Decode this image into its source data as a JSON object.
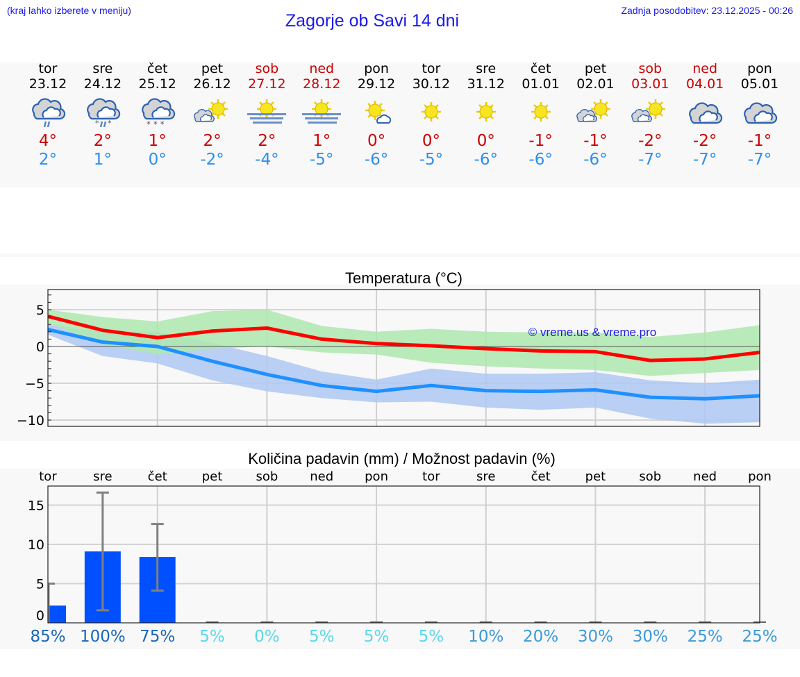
{
  "header": {
    "menu_hint": "(kraj lahko izberete v meniju)",
    "title": "Zagorje ob Savi 14 dni",
    "last_update": "Zadnja posodobitev: 23.12.2025 - 00:26"
  },
  "colors": {
    "title_blue": "#1a1ae6",
    "weekend_red": "#cc0000",
    "tmax_red": "#cc0000",
    "tmin_blue": "#2b8ef0",
    "line_max": "#ff0000",
    "line_min": "#1e90ff",
    "band_max": "#aee8ae",
    "band_min": "#aec8f2",
    "bar": "#0050ff",
    "errbar": "#808080"
  },
  "days": [
    {
      "name": "tor",
      "date": "23.12",
      "weekend": false,
      "icon": "cloud-rain-icon",
      "tmax": "4°",
      "tmin": "2°"
    },
    {
      "name": "sre",
      "date": "24.12",
      "weekend": false,
      "icon": "cloud-sleet-icon",
      "tmax": "2°",
      "tmin": "1°"
    },
    {
      "name": "čet",
      "date": "25.12",
      "weekend": false,
      "icon": "cloud-snow-icon",
      "tmax": "1°",
      "tmin": "0°"
    },
    {
      "name": "pet",
      "date": "26.12",
      "weekend": false,
      "icon": "sun-cloud-icon",
      "tmax": "2°",
      "tmin": "-2°"
    },
    {
      "name": "sob",
      "date": "27.12",
      "weekend": true,
      "icon": "sun-fog-icon",
      "tmax": "2°",
      "tmin": "-4°"
    },
    {
      "name": "ned",
      "date": "28.12",
      "weekend": true,
      "icon": "sun-fog-icon",
      "tmax": "1°",
      "tmin": "-5°"
    },
    {
      "name": "pon",
      "date": "29.12",
      "weekend": false,
      "icon": "sun-small-cloud-icon",
      "tmax": "0°",
      "tmin": "-6°"
    },
    {
      "name": "tor",
      "date": "30.12",
      "weekend": false,
      "icon": "sun-icon",
      "tmax": "0°",
      "tmin": "-5°"
    },
    {
      "name": "sre",
      "date": "31.12",
      "weekend": false,
      "icon": "sun-icon",
      "tmax": "0°",
      "tmin": "-6°"
    },
    {
      "name": "čet",
      "date": "01.01",
      "weekend": false,
      "icon": "sun-icon",
      "tmax": "-1°",
      "tmin": "-6°"
    },
    {
      "name": "pet",
      "date": "02.01",
      "weekend": false,
      "icon": "sun-cloud-icon",
      "tmax": "-1°",
      "tmin": "-6°"
    },
    {
      "name": "sob",
      "date": "03.01",
      "weekend": true,
      "icon": "sun-cloud-icon",
      "tmax": "-2°",
      "tmin": "-7°"
    },
    {
      "name": "ned",
      "date": "04.01",
      "weekend": true,
      "icon": "cloud-icon",
      "tmax": "-2°",
      "tmin": "-7°"
    },
    {
      "name": "pon",
      "date": "05.01",
      "weekend": false,
      "icon": "cloud-icon",
      "tmax": "-1°",
      "tmin": "-7°"
    }
  ],
  "chart_data": [
    {
      "type": "line",
      "title": "Temperatura (°C)",
      "xlabel": "",
      "ylabel": "",
      "ylim": [
        -11,
        7.7
      ],
      "yticks": [
        "5",
        "0",
        "−5",
        "−10"
      ],
      "grid": true,
      "annotation": "© vreme.us & vreme.pro",
      "x": [
        "23.12",
        "24.12",
        "25.12",
        "26.12",
        "27.12",
        "28.12",
        "29.12",
        "30.12",
        "31.12",
        "01.01",
        "02.01",
        "03.01",
        "04.01",
        "05.01"
      ],
      "series": [
        {
          "name": "max",
          "values": [
            4.1,
            2.2,
            1.2,
            2.1,
            2.5,
            1.0,
            0.4,
            0.1,
            -0.3,
            -0.6,
            -0.7,
            -1.9,
            -1.7,
            -0.8
          ]
        },
        {
          "name": "min",
          "values": [
            2.3,
            0.6,
            0.0,
            -2.0,
            -3.8,
            -5.3,
            -6.1,
            -5.3,
            -6.0,
            -6.1,
            -5.9,
            -6.9,
            -7.1,
            -6.7
          ]
        },
        {
          "name": "max_band_upper",
          "values": [
            5.0,
            4.0,
            3.4,
            4.8,
            5.0,
            2.8,
            2.0,
            2.4,
            2.0,
            1.9,
            1.9,
            1.3,
            1.9,
            2.9
          ]
        },
        {
          "name": "max_band_lower",
          "values": [
            3.2,
            0.3,
            -1.1,
            -0.3,
            0.0,
            -0.8,
            -1.1,
            -2.2,
            -2.7,
            -3.0,
            -3.2,
            -4.0,
            -3.6,
            -3.2
          ]
        },
        {
          "name": "min_band_upper",
          "values": [
            3.0,
            2.0,
            2.0,
            0.5,
            -1.3,
            -3.4,
            -4.5,
            -3.0,
            -3.7,
            -3.7,
            -3.5,
            -4.6,
            -5.0,
            -4.5
          ]
        },
        {
          "name": "min_band_lower",
          "values": [
            1.6,
            -1.3,
            -2.3,
            -4.6,
            -6.1,
            -7.0,
            -7.6,
            -7.5,
            -8.3,
            -8.6,
            -8.3,
            -9.8,
            -10.5,
            -10.3
          ]
        }
      ]
    },
    {
      "type": "bar",
      "title": "Količina padavin (mm) / Možnost padavin (%)",
      "categories": [
        "tor",
        "sre",
        "čet",
        "pet",
        "sob",
        "ned",
        "pon",
        "tor",
        "sre",
        "čet",
        "pet",
        "sob",
        "ned",
        "pon"
      ],
      "values": [
        2.2,
        9.1,
        8.4,
        0,
        0,
        0,
        0,
        0,
        0,
        0,
        0,
        0,
        0,
        0
      ],
      "error_low": [
        0,
        1.6,
        4.1,
        0,
        0,
        0,
        0,
        0,
        0,
        0,
        0,
        0,
        0,
        0
      ],
      "error_high": [
        5.0,
        16.6,
        12.6,
        0,
        0,
        0,
        0,
        0,
        0,
        0,
        0,
        0,
        0,
        0
      ],
      "probability": [
        "85%",
        "100%",
        "75%",
        "5%",
        "0%",
        "5%",
        "5%",
        "5%",
        "10%",
        "20%",
        "30%",
        "30%",
        "25%",
        "25%"
      ],
      "ylim": [
        -1,
        17.4
      ],
      "yticks": [
        "15",
        "10",
        "5",
        "0"
      ],
      "xlabel": "",
      "ylabel": "",
      "grid": true
    }
  ]
}
